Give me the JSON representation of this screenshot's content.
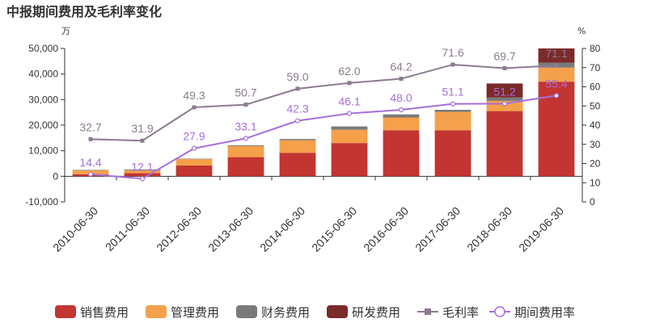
{
  "chart_data": {
    "type": "bar",
    "title": "中报期间费用及毛利率变化",
    "left_unit": "万",
    "right_unit": "%",
    "categories": [
      "2010-06-30",
      "2011-06-30",
      "2012-06-30",
      "2013-06-30",
      "2014-06-30",
      "2015-06-30",
      "2016-06-30",
      "2017-06-30",
      "2018-06-30",
      "2019-06-30"
    ],
    "left_ylim": [
      -10000,
      50000
    ],
    "left_ticks": [
      "-10,000",
      "0",
      "10,000",
      "20,000",
      "30,000",
      "40,000",
      "50,000"
    ],
    "right_ylim": [
      0,
      80
    ],
    "right_ticks": [
      "0",
      "10",
      "20",
      "30",
      "40",
      "50",
      "60",
      "70",
      "80"
    ],
    "stacked_series": [
      {
        "name": "销售费用",
        "color": "#c23531",
        "values": [
          800,
          1200,
          4200,
          7500,
          9200,
          13000,
          18000,
          18000,
          25500,
          37000
        ]
      },
      {
        "name": "管理费用",
        "color": "#f5a04a",
        "values": [
          1500,
          1200,
          2500,
          4300,
          4900,
          5200,
          5000,
          7200,
          4000,
          5500
        ]
      },
      {
        "name": "财务费用",
        "color": "#7a7a7a",
        "values": [
          200,
          300,
          200,
          300,
          500,
          1300,
          1200,
          800,
          1300,
          1900
        ]
      },
      {
        "name": "研发费用",
        "color": "#7b2a2a",
        "values": [
          0,
          0,
          0,
          0,
          0,
          0,
          0,
          0,
          5500,
          5600
        ]
      }
    ],
    "line_series": [
      {
        "name": "毛利率",
        "color": "#8c7b8f",
        "marker": "square",
        "values": [
          32.7,
          31.9,
          49.3,
          50.7,
          59.0,
          62.0,
          64.2,
          71.6,
          69.7,
          71.1
        ],
        "labels": [
          "32.7",
          "31.9",
          "49.3",
          "50.7",
          "59.0",
          "62.0",
          "64.2",
          "71.6",
          "69.7",
          "71.1"
        ]
      },
      {
        "name": "期间费用率",
        "color": "#a66fd8",
        "marker": "circle",
        "values": [
          14.4,
          12.1,
          27.9,
          33.1,
          42.3,
          46.1,
          48.0,
          51.1,
          51.2,
          55.4
        ],
        "labels": [
          "14.4",
          "12.1",
          "27.9",
          "33.1",
          "42.3",
          "46.1",
          "48.0",
          "51.1",
          "51.2",
          "55.4"
        ]
      }
    ],
    "grid": false,
    "legend_position": "bottom"
  }
}
